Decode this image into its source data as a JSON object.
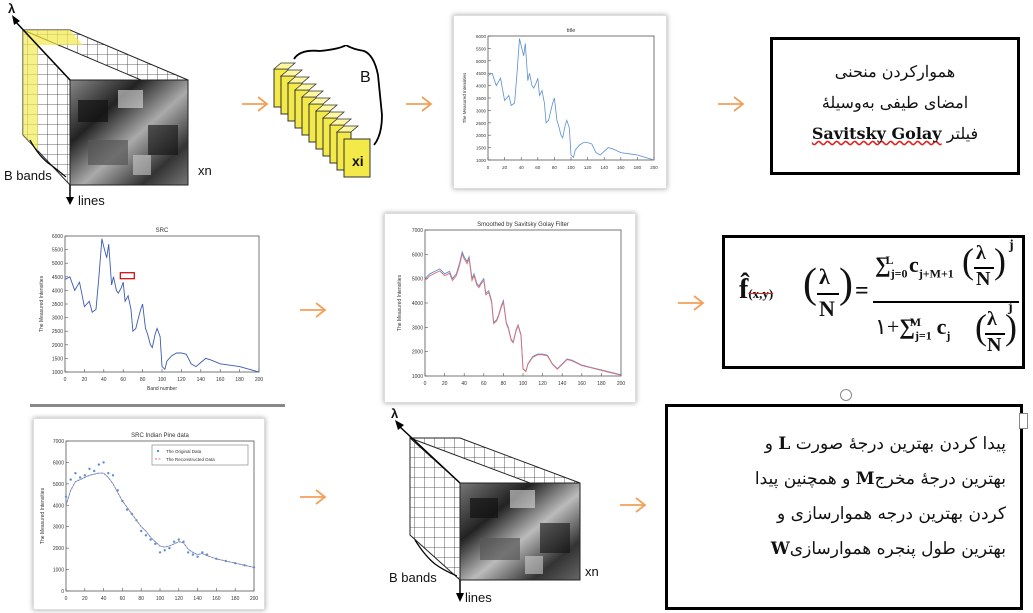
{
  "cube1": {
    "lambda": "λ",
    "b_bands": "B bands",
    "xn": "xn",
    "lines": "lines"
  },
  "pixel_vector": {
    "B": "B",
    "xi": "xi"
  },
  "plot1": {
    "title": "title",
    "ylabel": "The Measured Intensities"
  },
  "box1": {
    "line1": "هموارکردن منحنی",
    "line2": "امضای طیفی بەوسیلۀ",
    "line3_ar": "فیلتر",
    "line3_en": "Savitsky Golay"
  },
  "plot2": {
    "title": "SRC",
    "ylabel": "The Measured Intensities",
    "xlabel": "Band number"
  },
  "plot3": {
    "title": "Smoothed by Savitsky Golay Filter",
    "ylabel": "The Measured Intensities"
  },
  "formula": {
    "lhs_f": "f̂",
    "lhs_sub": "(x,y)",
    "lam": "λ",
    "N": "N",
    "num_sum": "∑",
    "num_sub": "j=0",
    "num_sup": "L",
    "num_c": "c",
    "num_csub": "j+M+1",
    "exp_j": "j",
    "den_one": "١+",
    "den_sub": "j=1",
    "den_sup": "M",
    "den_c": "c",
    "den_csub": "j"
  },
  "plot4": {
    "title": "SRC Indian Pine data",
    "ylabel": "The Measured Intensities",
    "legend1": "The Original Data",
    "legend2": "The Reconstructed Data"
  },
  "cube2": {
    "lambda": "λ",
    "b_bands": "B bands",
    "xn": "xn",
    "lines": "lines"
  },
  "box3": {
    "l1_a": "پیدا کردن بهترین درجۀ صورت",
    "l1_b": "L",
    "l1_c": "و",
    "l2_a": "بهترین درجۀ مخرج",
    "l2_b": "M",
    "l2_c": "و همچنین پیدا",
    "l3": "کردن بهترین درجه هموارسازی و",
    "l4_a": "بهترین طول پنجره هموارسازی",
    "l4_b": "W"
  },
  "colors": {
    "arrow": "#f2a15a",
    "blue_line": "#5b8fd1",
    "red_line": "#e07070",
    "yellow": "#f3ea4a"
  },
  "chart_data": [
    {
      "type": "line",
      "title": "",
      "ylim": [
        1000,
        6000
      ],
      "xlim": [
        0,
        200
      ],
      "yticks": [
        1000,
        1500,
        2000,
        2500,
        3000,
        3500,
        4000,
        4500,
        5000,
        5500,
        6000
      ],
      "xticks": [
        0,
        20,
        40,
        60,
        80,
        100,
        120,
        140,
        160,
        180,
        200
      ],
      "x": [
        0,
        5,
        10,
        15,
        20,
        25,
        28,
        32,
        35,
        38,
        40,
        43,
        45,
        48,
        50,
        53,
        55,
        58,
        60,
        62,
        65,
        68,
        70,
        73,
        75,
        78,
        80,
        83,
        85,
        88,
        90,
        93,
        95,
        98,
        100,
        103,
        105,
        110,
        115,
        120,
        125,
        130,
        135,
        140,
        145,
        150,
        160,
        170,
        180,
        190,
        200
      ],
      "y": [
        4400,
        4500,
        4000,
        4300,
        3400,
        3600,
        3200,
        3300,
        4500,
        5900,
        5600,
        5200,
        5700,
        4200,
        4500,
        4000,
        3900,
        4100,
        4300,
        3600,
        3800,
        3300,
        2500,
        2600,
        2900,
        3300,
        3500,
        2600,
        2400,
        2000,
        1900,
        2400,
        2600,
        2300,
        1200,
        1100,
        1400,
        1600,
        1700,
        1700,
        1650,
        1300,
        1200,
        1350,
        1500,
        1450,
        1300,
        1250,
        1200,
        1100,
        1000
      ]
    },
    {
      "type": "line",
      "title": "SRC",
      "xlabel": "Band number",
      "ylim": [
        1000,
        6000
      ],
      "xlim": [
        0,
        200
      ],
      "yticks": [
        1000,
        1500,
        2000,
        2500,
        3000,
        3500,
        4000,
        4500,
        5000,
        5500,
        6000
      ],
      "xticks": [
        0,
        20,
        40,
        60,
        80,
        100,
        120,
        140,
        160,
        180,
        200
      ],
      "x": [
        0,
        5,
        10,
        15,
        20,
        25,
        28,
        32,
        35,
        38,
        40,
        43,
        45,
        48,
        50,
        53,
        55,
        58,
        60,
        62,
        65,
        68,
        70,
        73,
        75,
        78,
        80,
        83,
        85,
        88,
        90,
        93,
        95,
        98,
        100,
        103,
        105,
        110,
        115,
        120,
        125,
        130,
        135,
        140,
        145,
        150,
        160,
        170,
        180,
        190,
        200
      ],
      "y": [
        4400,
        4500,
        4000,
        4300,
        3400,
        3600,
        3200,
        3300,
        4500,
        5900,
        5600,
        5200,
        5700,
        4200,
        4500,
        4000,
        3900,
        4100,
        4300,
        3600,
        3800,
        3300,
        2500,
        2600,
        2900,
        3300,
        3500,
        2600,
        2400,
        2000,
        1900,
        2400,
        2600,
        2300,
        1200,
        1100,
        1400,
        1600,
        1700,
        1700,
        1650,
        1300,
        1200,
        1350,
        1500,
        1450,
        1300,
        1250,
        1200,
        1100,
        1000
      ]
    },
    {
      "type": "line",
      "title": "Smoothed by Savitsky Golay Filter",
      "ylim": [
        1000,
        7000
      ],
      "xlim": [
        0,
        200
      ],
      "yticks": [
        1000,
        2000,
        3000,
        4000,
        5000,
        6000,
        7000
      ],
      "xticks": [
        0,
        20,
        40,
        60,
        80,
        100,
        120,
        140,
        160,
        180,
        200
      ],
      "x": [
        0,
        5,
        10,
        15,
        20,
        25,
        28,
        32,
        35,
        38,
        40,
        43,
        45,
        48,
        50,
        53,
        55,
        58,
        60,
        62,
        65,
        68,
        70,
        73,
        75,
        78,
        80,
        83,
        85,
        88,
        90,
        93,
        95,
        98,
        100,
        103,
        105,
        110,
        115,
        120,
        125,
        130,
        135,
        140,
        145,
        150,
        160,
        170,
        180,
        190,
        200
      ],
      "y": [
        5000,
        5200,
        5300,
        5400,
        5200,
        5300,
        5000,
        5200,
        5600,
        6100,
        5900,
        5700,
        5900,
        5000,
        5200,
        4800,
        4700,
        4900,
        5000,
        4400,
        4500,
        4100,
        3200,
        3300,
        3500,
        3900,
        4100,
        3200,
        3000,
        2500,
        2400,
        2900,
        3100,
        2700,
        1300,
        1200,
        1500,
        1800,
        1900,
        1900,
        1850,
        1500,
        1300,
        1500,
        1700,
        1650,
        1450,
        1350,
        1250,
        1150,
        1050
      ]
    },
    {
      "type": "line",
      "title": "SRC Indian Pine data",
      "ylim": [
        0,
        7000
      ],
      "xlim": [
        0,
        200
      ],
      "yticks": [
        0,
        1000,
        2000,
        3000,
        4000,
        5000,
        6000,
        7000
      ],
      "xticks": [
        0,
        20,
        40,
        60,
        80,
        100,
        120,
        140,
        160,
        180,
        200
      ],
      "series": [
        {
          "name": "The Original Data",
          "x": [
            0,
            5,
            10,
            15,
            20,
            25,
            30,
            35,
            40,
            45,
            50,
            55,
            60,
            65,
            70,
            75,
            80,
            85,
            90,
            95,
            100,
            105,
            110,
            115,
            120,
            125,
            130,
            135,
            140,
            145,
            150,
            160,
            170,
            180,
            190,
            200
          ],
          "y": [
            4400,
            5200,
            5500,
            5300,
            5400,
            5700,
            5600,
            5900,
            6000,
            5500,
            5400,
            4700,
            4200,
            3800,
            3600,
            3300,
            2800,
            2600,
            2400,
            2200,
            1800,
            1900,
            2000,
            2300,
            2400,
            2300,
            1800,
            1700,
            1600,
            1800,
            1700,
            1500,
            1400,
            1300,
            1200,
            1100
          ]
        },
        {
          "name": "The Reconstructed Data",
          "x": [
            0,
            5,
            10,
            15,
            20,
            25,
            30,
            35,
            40,
            45,
            50,
            55,
            60,
            65,
            70,
            75,
            80,
            85,
            90,
            95,
            100,
            105,
            110,
            115,
            120,
            125,
            130,
            135,
            140,
            145,
            150,
            160,
            170,
            180,
            190,
            200
          ],
          "y": [
            4000,
            4700,
            5100,
            5200,
            5300,
            5400,
            5450,
            5500,
            5500,
            5300,
            5000,
            4600,
            4200,
            3900,
            3600,
            3300,
            3000,
            2800,
            2500,
            2300,
            2100,
            2050,
            2100,
            2200,
            2300,
            2250,
            1950,
            1800,
            1700,
            1750,
            1650,
            1500,
            1400,
            1300,
            1200,
            1100
          ]
        }
      ]
    }
  ]
}
